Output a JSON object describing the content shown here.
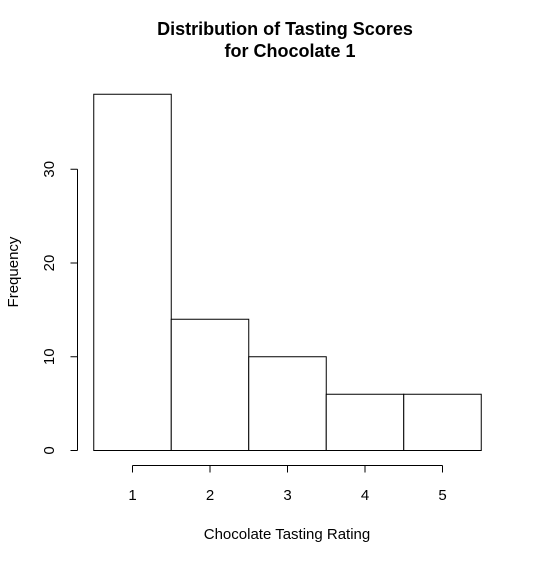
{
  "chart_data": {
    "type": "bar",
    "title_line1": "Distribution of Tasting Scores",
    "title_line2": "for Chocolate 1",
    "xlabel": "Chocolate Tasting Rating",
    "ylabel": "Frequency",
    "categories": [
      "1",
      "2",
      "3",
      "4",
      "5"
    ],
    "values": [
      38,
      14,
      10,
      6,
      6
    ],
    "x_ticks": [
      1,
      2,
      3,
      4,
      5
    ],
    "y_ticks": [
      0,
      10,
      20,
      30
    ],
    "ylim": [
      0,
      38
    ],
    "grid": false,
    "legend": "none",
    "bar_fill": "#ffffff",
    "bar_stroke": "#000000"
  }
}
